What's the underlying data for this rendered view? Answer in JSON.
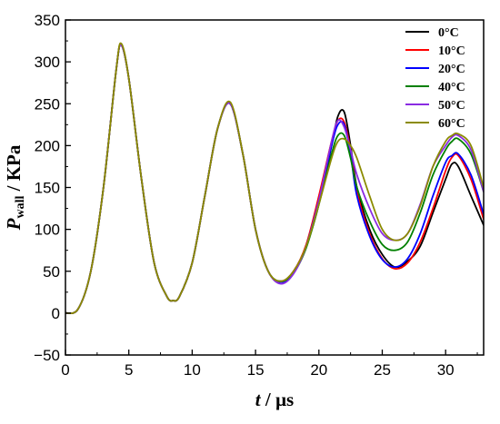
{
  "chart_data": {
    "type": "line",
    "xlabel": {
      "var": "t",
      "unit": " / µs"
    },
    "ylabel": {
      "var": "P",
      "sub": "wall",
      "unit": " / KPa"
    },
    "xlim": [
      0,
      33
    ],
    "ylim": [
      -50,
      350
    ],
    "xticks": [
      0,
      5,
      10,
      15,
      20,
      25,
      30
    ],
    "yticks": [
      -50,
      0,
      50,
      100,
      150,
      200,
      250,
      300,
      350
    ],
    "grid": false,
    "legend_position": "top-right",
    "series": [
      {
        "name": "0°C",
        "color": "#000000",
        "points": [
          [
            0,
            0
          ],
          [
            1,
            5
          ],
          [
            2,
            50
          ],
          [
            3,
            150
          ],
          [
            4,
            290
          ],
          [
            4.4,
            320
          ],
          [
            5,
            280
          ],
          [
            6,
            160
          ],
          [
            7,
            60
          ],
          [
            8,
            20
          ],
          [
            8.5,
            15
          ],
          [
            9,
            20
          ],
          [
            10,
            60
          ],
          [
            11,
            140
          ],
          [
            12,
            220
          ],
          [
            13,
            250
          ],
          [
            14,
            190
          ],
          [
            15,
            100
          ],
          [
            16,
            50
          ],
          [
            17,
            38
          ],
          [
            18,
            50
          ],
          [
            19,
            80
          ],
          [
            20,
            130
          ],
          [
            21,
            200
          ],
          [
            21.5,
            235
          ],
          [
            22,
            240
          ],
          [
            22.5,
            200
          ],
          [
            23,
            150
          ],
          [
            24,
            100
          ],
          [
            25,
            70
          ],
          [
            26,
            55
          ],
          [
            27,
            62
          ],
          [
            28,
            80
          ],
          [
            29,
            120
          ],
          [
            30,
            160
          ],
          [
            30.5,
            178
          ],
          [
            31,
            175
          ],
          [
            32,
            140
          ],
          [
            33,
            105
          ]
        ]
      },
      {
        "name": "10°C",
        "color": "#ff0000",
        "points": [
          [
            0,
            0
          ],
          [
            1,
            5
          ],
          [
            2,
            50
          ],
          [
            3,
            150
          ],
          [
            4,
            290
          ],
          [
            4.4,
            320
          ],
          [
            5,
            280
          ],
          [
            6,
            160
          ],
          [
            7,
            60
          ],
          [
            8,
            20
          ],
          [
            8.5,
            15
          ],
          [
            9,
            20
          ],
          [
            10,
            60
          ],
          [
            11,
            140
          ],
          [
            12,
            220
          ],
          [
            13,
            250
          ],
          [
            14,
            190
          ],
          [
            15,
            100
          ],
          [
            16,
            50
          ],
          [
            17,
            38
          ],
          [
            18,
            50
          ],
          [
            19,
            82
          ],
          [
            20,
            140
          ],
          [
            21,
            205
          ],
          [
            21.5,
            230
          ],
          [
            22,
            228
          ],
          [
            22.5,
            195
          ],
          [
            23,
            145
          ],
          [
            24,
            95
          ],
          [
            25,
            65
          ],
          [
            26,
            53
          ],
          [
            27,
            60
          ],
          [
            28,
            85
          ],
          [
            29,
            125
          ],
          [
            30,
            170
          ],
          [
            30.5,
            186
          ],
          [
            31,
            188
          ],
          [
            32,
            160
          ],
          [
            33,
            112
          ]
        ]
      },
      {
        "name": "20°C",
        "color": "#0000ff",
        "points": [
          [
            0,
            0
          ],
          [
            1,
            5
          ],
          [
            2,
            50
          ],
          [
            3,
            150
          ],
          [
            4,
            290
          ],
          [
            4.4,
            320
          ],
          [
            5,
            280
          ],
          [
            6,
            160
          ],
          [
            7,
            60
          ],
          [
            8,
            20
          ],
          [
            8.5,
            15
          ],
          [
            9,
            20
          ],
          [
            10,
            60
          ],
          [
            11,
            140
          ],
          [
            12,
            220
          ],
          [
            13,
            250
          ],
          [
            14,
            190
          ],
          [
            15,
            100
          ],
          [
            16,
            50
          ],
          [
            17,
            37
          ],
          [
            18,
            48
          ],
          [
            19,
            80
          ],
          [
            20,
            135
          ],
          [
            21,
            200
          ],
          [
            21.5,
            225
          ],
          [
            22,
            225
          ],
          [
            22.5,
            190
          ],
          [
            23,
            140
          ],
          [
            24,
            92
          ],
          [
            25,
            64
          ],
          [
            26,
            55
          ],
          [
            27,
            65
          ],
          [
            28,
            95
          ],
          [
            29,
            140
          ],
          [
            30,
            180
          ],
          [
            30.5,
            188
          ],
          [
            31,
            190
          ],
          [
            32,
            165
          ],
          [
            33,
            118
          ]
        ]
      },
      {
        "name": "40°C",
        "color": "#008000",
        "points": [
          [
            0,
            0
          ],
          [
            1,
            5
          ],
          [
            2,
            50
          ],
          [
            3,
            150
          ],
          [
            4,
            290
          ],
          [
            4.4,
            320
          ],
          [
            5,
            280
          ],
          [
            6,
            160
          ],
          [
            7,
            60
          ],
          [
            8,
            20
          ],
          [
            8.5,
            15
          ],
          [
            9,
            20
          ],
          [
            10,
            60
          ],
          [
            11,
            140
          ],
          [
            12,
            220
          ],
          [
            13,
            250
          ],
          [
            14,
            190
          ],
          [
            15,
            100
          ],
          [
            16,
            50
          ],
          [
            17,
            38
          ],
          [
            18,
            48
          ],
          [
            19,
            78
          ],
          [
            20,
            130
          ],
          [
            21,
            190
          ],
          [
            21.5,
            212
          ],
          [
            22,
            212
          ],
          [
            22.5,
            185
          ],
          [
            23,
            150
          ],
          [
            24,
            110
          ],
          [
            25,
            82
          ],
          [
            26,
            75
          ],
          [
            27,
            85
          ],
          [
            28,
            120
          ],
          [
            29,
            165
          ],
          [
            30,
            195
          ],
          [
            30.5,
            205
          ],
          [
            31,
            208
          ],
          [
            32,
            190
          ],
          [
            33,
            145
          ]
        ]
      },
      {
        "name": "50°C",
        "color": "#8a2be2",
        "points": [
          [
            0,
            0
          ],
          [
            1,
            5
          ],
          [
            2,
            50
          ],
          [
            3,
            150
          ],
          [
            4,
            290
          ],
          [
            4.4,
            320
          ],
          [
            5,
            280
          ],
          [
            6,
            160
          ],
          [
            7,
            60
          ],
          [
            8,
            20
          ],
          [
            8.5,
            15
          ],
          [
            9,
            20
          ],
          [
            10,
            60
          ],
          [
            11,
            140
          ],
          [
            12,
            220
          ],
          [
            13,
            250
          ],
          [
            14,
            190
          ],
          [
            15,
            100
          ],
          [
            16,
            50
          ],
          [
            17,
            35
          ],
          [
            18,
            47
          ],
          [
            19,
            80
          ],
          [
            20,
            135
          ],
          [
            21,
            205
          ],
          [
            21.5,
            230
          ],
          [
            22,
            222
          ],
          [
            22.5,
            195
          ],
          [
            23,
            165
          ],
          [
            24,
            125
          ],
          [
            25,
            95
          ],
          [
            26,
            87
          ],
          [
            27,
            95
          ],
          [
            28,
            130
          ],
          [
            29,
            175
          ],
          [
            30,
            200
          ],
          [
            30.5,
            210
          ],
          [
            31,
            212
          ],
          [
            32,
            195
          ],
          [
            33,
            145
          ]
        ]
      },
      {
        "name": "60°C",
        "color": "#8b8b00",
        "points": [
          [
            0,
            0
          ],
          [
            1,
            5
          ],
          [
            2,
            50
          ],
          [
            3,
            150
          ],
          [
            4,
            290
          ],
          [
            4.4,
            322
          ],
          [
            5,
            280
          ],
          [
            6,
            160
          ],
          [
            7,
            60
          ],
          [
            8,
            20
          ],
          [
            8.5,
            15
          ],
          [
            9,
            20
          ],
          [
            10,
            60
          ],
          [
            11,
            140
          ],
          [
            12,
            220
          ],
          [
            13,
            252
          ],
          [
            14,
            190
          ],
          [
            15,
            100
          ],
          [
            16,
            50
          ],
          [
            17,
            38
          ],
          [
            18,
            50
          ],
          [
            19,
            80
          ],
          [
            20,
            130
          ],
          [
            21,
            185
          ],
          [
            21.5,
            205
          ],
          [
            22,
            208
          ],
          [
            22.5,
            200
          ],
          [
            23,
            185
          ],
          [
            24,
            140
          ],
          [
            25,
            100
          ],
          [
            26,
            87
          ],
          [
            27,
            95
          ],
          [
            28,
            128
          ],
          [
            29,
            175
          ],
          [
            30,
            205
          ],
          [
            30.5,
            212
          ],
          [
            31,
            214
          ],
          [
            32,
            200
          ],
          [
            33,
            150
          ]
        ]
      }
    ]
  }
}
